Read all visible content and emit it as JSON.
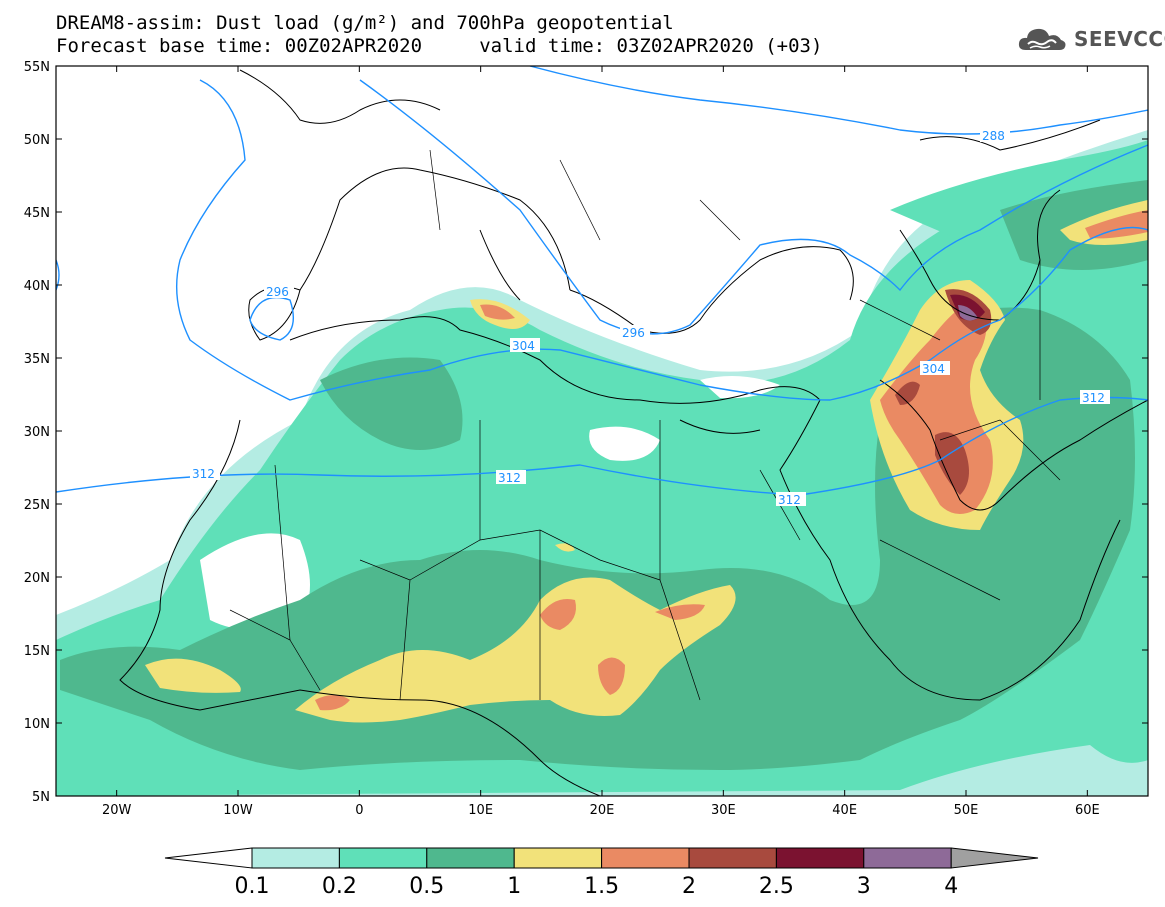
{
  "title": {
    "line1": "DREAM8-assim: Dust load (g/m²) and 700hPa geopotential",
    "line2": "Forecast base time: 00Z02APR2020     valid time: 03Z02APR2020 (+03)"
  },
  "logo": {
    "text": "SEEVCCC",
    "icon": "cloud-icon",
    "color": "#555555"
  },
  "axes": {
    "lat_labels": [
      "55N",
      "50N",
      "45N",
      "40N",
      "35N",
      "30N",
      "25N",
      "20N",
      "15N",
      "10N",
      "5N"
    ],
    "lon_labels": [
      "20W",
      "10W",
      "0",
      "10E",
      "20E",
      "30E",
      "40E",
      "50E",
      "60E"
    ],
    "lat_range": [
      5,
      55
    ],
    "lon_range": [
      -25,
      65
    ]
  },
  "contours": {
    "color": "#1e90ff",
    "labels": [
      "288",
      "296",
      "296",
      "304",
      "304",
      "312",
      "312",
      "312",
      "312"
    ]
  },
  "legend": {
    "labels": [
      "0.1",
      "0.2",
      "0.5",
      "1",
      "1.5",
      "2",
      "2.5",
      "3",
      "4"
    ],
    "colors": [
      "#b4ece3",
      "#5fe0b8",
      "#4fb88e",
      "#f2e27a",
      "#ea8a63",
      "#a84a3e",
      "#7b1230",
      "#8e6a98",
      "#a0a0a0"
    ],
    "below_color": "#ffffff"
  }
}
